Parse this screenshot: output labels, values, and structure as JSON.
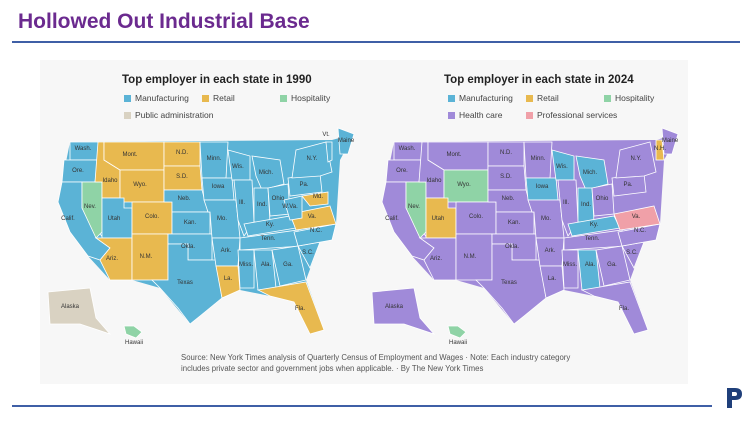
{
  "slide": {
    "title": "Hollowed Out Industrial Base"
  },
  "colors": {
    "Manufacturing": "#5bb3d6",
    "Retail": "#e8b94f",
    "Hospitality": "#8fd3a6",
    "Public administration": "#d9d2c2",
    "Health care": "#a08ad9",
    "Professional services": "#f0a0a8",
    "accent_title": "#6b2a8f",
    "rule": "#3f5fa6"
  },
  "maps": [
    {
      "title": "Top employer in each state in 1990",
      "legend": [
        "Manufacturing",
        "Retail",
        "Hospitality",
        "Public administration"
      ],
      "base_category": "Manufacturing",
      "state_labels": [
        "Wash.",
        "Ore.",
        "Calif.",
        "Nev.",
        "Idaho",
        "Mont.",
        "Wyo.",
        "Utah",
        "Colo.",
        "Ariz.",
        "N.M.",
        "N.D.",
        "S.D.",
        "Neb.",
        "Kan.",
        "Okla.",
        "Texas",
        "Minn.",
        "Iowa",
        "Mo.",
        "Ark.",
        "La.",
        "Wis.",
        "Ill.",
        "Mich.",
        "Ind.",
        "Ohio",
        "Ky.",
        "Tenn.",
        "Miss.",
        "Ala.",
        "Ga.",
        "Fla.",
        "S.C.",
        "N.C.",
        "Va.",
        "W.Va.",
        "Pa.",
        "N.Y.",
        "Vt.",
        "Maine",
        "Md.",
        "Alaska",
        "Hawaii"
      ],
      "states": {
        "Wash.": "Manufacturing",
        "Ore.": "Manufacturing",
        "Calif.": "Manufacturing",
        "Nev.": "Hospitality",
        "Idaho": "Retail",
        "Mont.": "Retail",
        "Wyo.": "Retail",
        "Utah": "Manufacturing",
        "Colo.": "Retail",
        "Ariz.": "Retail",
        "N.M.": "Retail",
        "N.D.": "Retail",
        "S.D.": "Retail",
        "Neb.": "Manufacturing",
        "Kan.": "Manufacturing",
        "Okla.": "Manufacturing",
        "Texas": "Manufacturing",
        "Minn.": "Manufacturing",
        "Iowa": "Manufacturing",
        "Mo.": "Manufacturing",
        "Ark.": "Manufacturing",
        "La.": "Retail",
        "Wis.": "Manufacturing",
        "Ill.": "Manufacturing",
        "Mich.": "Manufacturing",
        "Ind.": "Manufacturing",
        "Ohio": "Manufacturing",
        "Ky.": "Manufacturing",
        "Tenn.": "Manufacturing",
        "Miss.": "Manufacturing",
        "Ala.": "Manufacturing",
        "Ga.": "Manufacturing",
        "Fla.": "Retail",
        "S.C.": "Manufacturing",
        "N.C.": "Manufacturing",
        "Va.": "Retail",
        "W.Va.": "Manufacturing",
        "Pa.": "Manufacturing",
        "N.Y.": "Manufacturing",
        "Vt.": "Manufacturing",
        "Maine": "Manufacturing",
        "Md.": "Retail",
        "Alaska": "Public administration",
        "Hawaii": "Hospitality"
      }
    },
    {
      "title": "Top employer in each state in 2024",
      "legend": [
        "Manufacturing",
        "Retail",
        "Hospitality",
        "Health care",
        "Professional services"
      ],
      "base_category": "Health care",
      "state_labels": [
        "Wash.",
        "Ore.",
        "Calif.",
        "Nev.",
        "Idaho",
        "Mont.",
        "Wyo.",
        "Utah",
        "Colo.",
        "Ariz.",
        "N.M.",
        "N.D.",
        "S.D.",
        "Neb.",
        "Kan.",
        "Okla.",
        "Texas",
        "Minn.",
        "Iowa",
        "Mo.",
        "Ark.",
        "La.",
        "Wis.",
        "Ill.",
        "Mich.",
        "Ind.",
        "Ohio",
        "Ky.",
        "Tenn.",
        "Miss.",
        "Ala.",
        "Ga.",
        "Fla.",
        "S.C.",
        "N.C.",
        "Va.",
        "Pa.",
        "N.Y.",
        "N.H.",
        "Maine",
        "Alaska",
        "Hawaii"
      ],
      "states": {
        "Wash.": "Health care",
        "Ore.": "Health care",
        "Calif.": "Health care",
        "Nev.": "Hospitality",
        "Idaho": "Health care",
        "Mont.": "Health care",
        "Wyo.": "Hospitality",
        "Utah": "Retail",
        "Colo.": "Health care",
        "Ariz.": "Health care",
        "N.M.": "Health care",
        "N.D.": "Health care",
        "S.D.": "Health care",
        "Neb.": "Health care",
        "Kan.": "Health care",
        "Okla.": "Health care",
        "Texas": "Health care",
        "Minn.": "Health care",
        "Iowa": "Manufacturing",
        "Mo.": "Health care",
        "Ark.": "Health care",
        "La.": "Health care",
        "Wis.": "Manufacturing",
        "Ill.": "Health care",
        "Mich.": "Manufacturing",
        "Ind.": "Manufacturing",
        "Ohio": "Health care",
        "Ky.": "Manufacturing",
        "Tenn.": "Health care",
        "Miss.": "Health care",
        "Ala.": "Manufacturing",
        "Ga.": "Health care",
        "Fla.": "Health care",
        "S.C.": "Health care",
        "N.C.": "Health care",
        "Va.": "Professional services",
        "Pa.": "Health care",
        "N.Y.": "Health care",
        "N.H.": "Retail",
        "Maine": "Health care",
        "Alaska": "Health care",
        "Hawaii": "Hospitality"
      }
    }
  ],
  "source": {
    "text": "Source: New York Times analysis of Quarterly Census of Employment and Wages · Note: Each industry category includes private sector and government jobs when applicable. · By The New York Times"
  }
}
